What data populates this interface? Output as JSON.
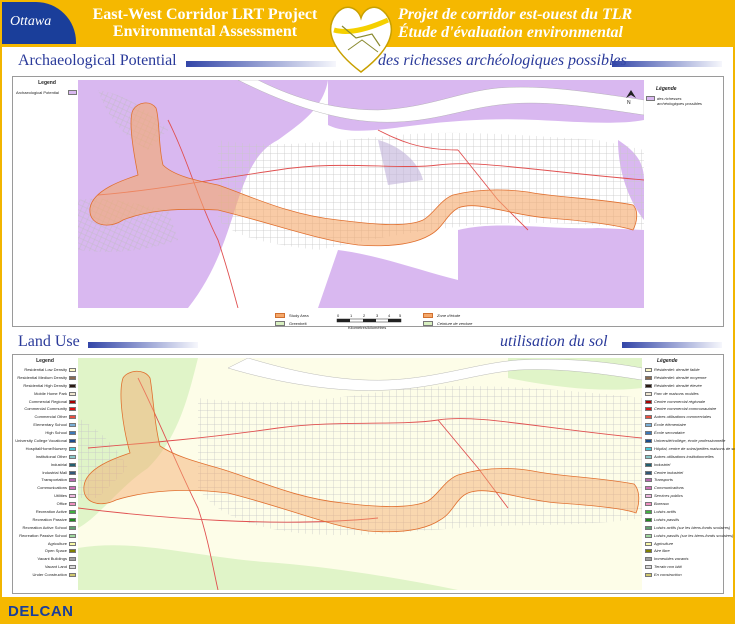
{
  "header": {
    "logo_text": "Ottawa",
    "en_title": "East-West Corridor LRT Project Environmental Assessment",
    "fr_title_1": "Projet de corridor est-ouest du TLR",
    "fr_title_2": "Étude d'évaluation environmental"
  },
  "archaeology": {
    "heading_en": "Archaeological Potential",
    "heading_fr": "des richesses archéologiques possibles",
    "legend_en_title": "Legend",
    "legend_en_item": "Archaeological Potential",
    "legend_fr_title": "Légende",
    "legend_fr_item": "des richesses archéologiques possibles",
    "key": {
      "study_area": "Study Area",
      "greenbelt": "Greenbelt",
      "zone": "Zone d'étude",
      "ceinture": "Ceinture de verdure",
      "scale_ticks": [
        "0",
        "1",
        "2",
        "3",
        "4",
        "5"
      ],
      "scale_label": "Kilometres/kilomètres"
    },
    "colors": {
      "potential": "#d9b8f0",
      "study": "#f5a86a",
      "greenbelt": "#d8f0c0"
    }
  },
  "landuse": {
    "heading_en": "Land Use",
    "heading_fr": "utilisation du sol",
    "legend_en_title": "Legend",
    "legend_en": [
      {
        "label": "Residential Low Density",
        "color": "#fbf7c8"
      },
      {
        "label": "Residential Medium Density",
        "color": "#8a6a50"
      },
      {
        "label": "Residential High Density",
        "color": "#2a1a12"
      },
      {
        "label": "Mobile Home Park",
        "color": "#f0e6d0"
      },
      {
        "label": "Commercial Regional",
        "color": "#a80000"
      },
      {
        "label": "Commercial Community",
        "color": "#e01010"
      },
      {
        "label": "Commercial Other",
        "color": "#e85040"
      },
      {
        "label": "Elementary School",
        "color": "#7ab0d8"
      },
      {
        "label": "High School",
        "color": "#3b78b8"
      },
      {
        "label": "University College Vocational",
        "color": "#1a4c8c"
      },
      {
        "label": "Hospital/Home/Nursery",
        "color": "#48c8d8"
      },
      {
        "label": "Institutional Other",
        "color": "#88c8c8"
      },
      {
        "label": "Industrial",
        "color": "#206070"
      },
      {
        "label": "Industrial Mall",
        "color": "#305878"
      },
      {
        "label": "Transportation",
        "color": "#b86ab0"
      },
      {
        "label": "Communications",
        "color": "#d070b8"
      },
      {
        "label": "Utilities",
        "color": "#f0b8e0"
      },
      {
        "label": "Office",
        "color": "#f090c0"
      },
      {
        "label": "Recreation Active",
        "color": "#40b040"
      },
      {
        "label": "Recreation Passive",
        "color": "#208820"
      },
      {
        "label": "Recreation Active School",
        "color": "#60a070"
      },
      {
        "label": "Recreation Passive School",
        "color": "#a0d8a0"
      },
      {
        "label": "Agriculture",
        "color": "#f8f8a8"
      },
      {
        "label": "Open Space",
        "color": "#808000"
      },
      {
        "label": "Vacant Buildings",
        "color": "#a0a0a0"
      },
      {
        "label": "Vacant Land",
        "color": "#d8d8d8"
      },
      {
        "label": "Under Construction",
        "color": "#d0c870"
      }
    ],
    "legend_fr_title": "Légende",
    "legend_fr": [
      {
        "label": "Résidentiel: densité faible",
        "color": "#fbf7c8"
      },
      {
        "label": "Résidentiel: densité moyenne",
        "color": "#8a6a50"
      },
      {
        "label": "Résidentiel: densité élevée",
        "color": "#2a1a12"
      },
      {
        "label": "Parc de maisons mobiles",
        "color": "#f0e6d0"
      },
      {
        "label": "Centre commercial régionale",
        "color": "#a80000"
      },
      {
        "label": "Centre commercial communautaire",
        "color": "#e01010"
      },
      {
        "label": "Autres utilisations commerciales",
        "color": "#e85040"
      },
      {
        "label": "École élémentaire",
        "color": "#7ab0d8"
      },
      {
        "label": "École secondaire",
        "color": "#3b78b8"
      },
      {
        "label": "Université/collège, école professionnelle",
        "color": "#1a4c8c"
      },
      {
        "label": "Hôpital, centre de soins/petites maisons de soins infirmiers",
        "color": "#48c8d8"
      },
      {
        "label": "Autres utilisations institutionnelles",
        "color": "#88c8c8"
      },
      {
        "label": "Industriel",
        "color": "#206070"
      },
      {
        "label": "Centre industriel",
        "color": "#305878"
      },
      {
        "label": "Transports",
        "color": "#b86ab0"
      },
      {
        "label": "Communications",
        "color": "#d070b8"
      },
      {
        "label": "Services publics",
        "color": "#f0b8e0"
      },
      {
        "label": "Bureaux",
        "color": "#f090c0"
      },
      {
        "label": "Loisirs actifs",
        "color": "#40b040"
      },
      {
        "label": "Loisirs passifs",
        "color": "#208820"
      },
      {
        "label": "Loisirs actifs (sur les biens-fonds scolaires)",
        "color": "#60a070"
      },
      {
        "label": "Loisirs passifs (sur les biens-fonds scolaires)",
        "color": "#a0d8a0"
      },
      {
        "label": "Agriculture",
        "color": "#f8f8a8"
      },
      {
        "label": "Aire libre",
        "color": "#808000"
      },
      {
        "label": "Immeubles vacants",
        "color": "#a0a0a0"
      },
      {
        "label": "Terrain non bâti",
        "color": "#d8d8d8"
      },
      {
        "label": "En construction",
        "color": "#d0c870"
      }
    ]
  },
  "footer": {
    "brand": "DELCAN"
  },
  "colors": {
    "accent": "#f5b800",
    "heading": "#2a3a9a",
    "brand_blue": "#1a3e9a"
  }
}
